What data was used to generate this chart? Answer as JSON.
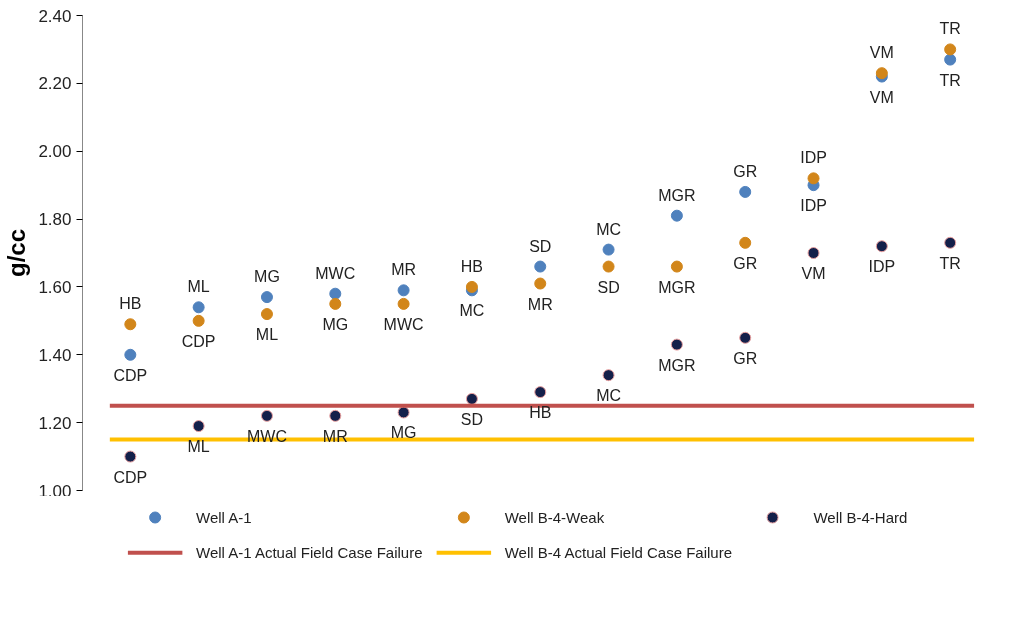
{
  "chart_data": {
    "type": "scatter",
    "ylabel": "g/cc",
    "categories": [
      null,
      null,
      null,
      null,
      null,
      null,
      null,
      null,
      null,
      null,
      null,
      null,
      null
    ],
    "ylim": [
      1.0,
      2.4
    ],
    "yticks": [
      {
        "value": 1.0,
        "label": "1.00"
      },
      {
        "value": 1.2,
        "label": "1.20"
      },
      {
        "value": 1.4,
        "label": "1.40"
      },
      {
        "value": 1.6,
        "label": "1.60"
      },
      {
        "value": 1.8,
        "label": "1.80"
      },
      {
        "value": 2.0,
        "label": "2.00"
      },
      {
        "value": 2.2,
        "label": "2.20"
      },
      {
        "value": 2.4,
        "label": "2.40"
      }
    ],
    "grid": false,
    "legend": "bottom",
    "marker": "circle",
    "series": [
      {
        "name": "Well A-1",
        "color": "#4f81bd",
        "values": [
          1.4,
          1.54,
          1.57,
          1.58,
          1.59,
          1.59,
          1.66,
          1.71,
          1.81,
          1.88,
          1.9,
          2.22,
          2.27
        ],
        "value_labels": [
          "CDP",
          "ML",
          "MG",
          "MWC",
          "MR",
          "MC",
          "SD",
          "MC",
          "MGR",
          "GR",
          "IDP",
          "VM",
          "TR"
        ]
      },
      {
        "name": "Well B-4-Weak",
        "color": "#d2861a",
        "values": [
          1.49,
          1.5,
          1.52,
          1.55,
          1.55,
          1.6,
          1.61,
          1.66,
          1.66,
          1.73,
          1.92,
          2.23,
          2.3
        ],
        "value_labels": [
          "HB",
          "CDP",
          "ML",
          "MG",
          "MWC",
          "HB",
          "MR",
          "SD",
          "MGR",
          "GR",
          "IDP",
          "VM",
          "TR"
        ]
      },
      {
        "name": "Well B-4-Hard",
        "color": "#14204a",
        "values": [
          1.1,
          1.19,
          1.22,
          1.22,
          1.23,
          1.27,
          1.29,
          1.34,
          1.43,
          1.45,
          1.7,
          1.72,
          1.73
        ],
        "value_labels": [
          "CDP",
          "ML",
          "MWC",
          "MR",
          "MG",
          "SD",
          "HB",
          "MC",
          "MGR",
          "GR",
          "VM",
          "IDP",
          "TR"
        ]
      }
    ],
    "ref_lines": [
      {
        "axis": "y",
        "value": 1.25,
        "label": "Well A-1 Actual Field Case Failure",
        "color": "#c0504d"
      },
      {
        "axis": "y",
        "value": 1.15,
        "label": "Well B-4 Actual Field Case Failure",
        "color": "#ffc000"
      }
    ]
  }
}
